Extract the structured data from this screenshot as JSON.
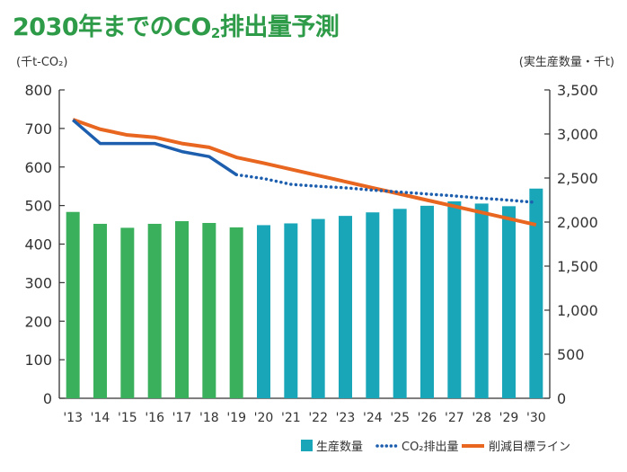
{
  "title": {
    "main": "2030年までのCO",
    "sub": "2",
    "rest": "排出量予測"
  },
  "unit_left": "(千t-CO₂)",
  "unit_right": "(実生産数量・千t)",
  "colors": {
    "title": "#2e9b49",
    "bar_actual": "#3aaf5c",
    "bar_forecast": "#18a6b8",
    "co2_line": "#1d5fae",
    "target_line": "#e8661f",
    "axis": "#333333",
    "text": "#333333"
  },
  "chart_data": {
    "type": "bar+line",
    "categories": [
      "'13",
      "'14",
      "'15",
      "'16",
      "'17",
      "'18",
      "'19",
      "'20",
      "'21",
      "'22",
      "'23",
      "'24",
      "'25",
      "'26",
      "'27",
      "'28",
      "'29",
      "'30"
    ],
    "left_axis": {
      "min": 0,
      "max": 800,
      "ticks": [
        "0",
        "100",
        "200",
        "300",
        "400",
        "500",
        "600",
        "700",
        "800"
      ],
      "tick_values": [
        0,
        100,
        200,
        300,
        400,
        500,
        600,
        700,
        800
      ]
    },
    "right_axis": {
      "min": 0,
      "max": 3500,
      "ticks": [
        "0",
        "500",
        "1,000",
        "1,500",
        "2,000",
        "2,500",
        "3,000",
        "3,500"
      ],
      "tick_values": [
        0,
        500,
        1000,
        1500,
        2000,
        2500,
        3000,
        3500
      ]
    },
    "bars": {
      "name": "生産数量",
      "axis": "right",
      "values": [
        2115,
        1980,
        1935,
        1980,
        2010,
        1990,
        1940,
        1965,
        1985,
        2035,
        2070,
        2110,
        2150,
        2185,
        2235,
        2210,
        2180,
        2380
      ],
      "forecast_from_index": 7
    },
    "co2_line": {
      "name": "CO₂排出量",
      "axis": "left",
      "style": "solid until 2019, dotted after",
      "values": [
        722,
        661,
        661,
        661,
        640,
        627,
        580,
        570,
        555,
        550,
        546,
        540,
        535,
        530,
        525,
        519,
        514,
        508
      ],
      "solid_until_index": 6
    },
    "target_line": {
      "name": "削減目標ライン",
      "axis": "left",
      "values": [
        723,
        698,
        683,
        677,
        661,
        651,
        625,
        610,
        594,
        578,
        562,
        546,
        530,
        514,
        498,
        482,
        466,
        450
      ]
    },
    "legend": [
      "生産数量",
      "CO₂排出量",
      "削減目標ライン"
    ],
    "legend_position": "bottom-right",
    "grid": false
  }
}
